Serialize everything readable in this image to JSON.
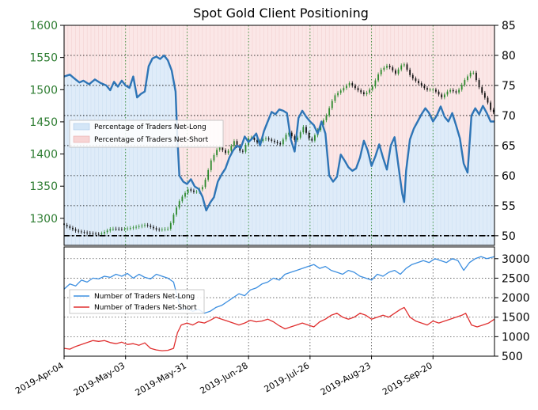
{
  "chart_data": [
    {
      "type": "candlestick+area",
      "title": "Spot Gold Client Positioning",
      "left_axis": {
        "ylim": [
          1258,
          1600
        ],
        "ticks": [
          1300,
          1350,
          1400,
          1450,
          1500,
          1550,
          1600
        ]
      },
      "right_axis": {
        "ylim": [
          48.4,
          85
        ],
        "ticks": [
          50,
          55,
          60,
          65,
          70,
          75,
          80,
          85
        ]
      },
      "x_dates": [
        "2019-Apr-04",
        "2019-May-03",
        "2019-May-31",
        "2019-Jun-28",
        "2019-Jul-26",
        "2019-Aug-23",
        "2019-Sep-20"
      ],
      "reference_line_value": 50,
      "legend": {
        "position": "upper-left",
        "entries": [
          "Percentage of Traders Net-Long",
          "Percentage of Traders Net-Short"
        ]
      },
      "colors": {
        "net_long_fill": "#d4e6f7",
        "net_short_fill": "#f7d4d4",
        "line": "#2e75b6",
        "candle_up": "#2e8b2e",
        "candle_down": "#111111",
        "grid": "#2e8b2e"
      },
      "series": [
        {
          "name": "Percentage of Traders Net-Long",
          "axis": "right",
          "points": [
            [
              0,
              76.5
            ],
            [
              3,
              76.8
            ],
            [
              6,
              76.0
            ],
            [
              8,
              75.5
            ],
            [
              10,
              75.8
            ],
            [
              13,
              75.2
            ],
            [
              16,
              76.0
            ],
            [
              19,
              75.4
            ],
            [
              22,
              75.0
            ],
            [
              24,
              74.2
            ],
            [
              26,
              75.6
            ],
            [
              28,
              74.8
            ],
            [
              30,
              75.8
            ],
            [
              32,
              75.0
            ],
            [
              34,
              74.6
            ],
            [
              36,
              76.5
            ],
            [
              38,
              73.0
            ],
            [
              40,
              73.6
            ],
            [
              42,
              74.0
            ],
            [
              44,
              78.2
            ],
            [
              46,
              79.5
            ],
            [
              48,
              79.8
            ],
            [
              50,
              79.4
            ],
            [
              52,
              80.0
            ],
            [
              54,
              79.2
            ],
            [
              56,
              77.5
            ],
            [
              58,
              74.0
            ],
            [
              59,
              66.0
            ],
            [
              60,
              60.0
            ],
            [
              62,
              59.0
            ],
            [
              64,
              58.6
            ],
            [
              66,
              59.4
            ],
            [
              68,
              58.2
            ],
            [
              70,
              57.8
            ],
            [
              72,
              56.5
            ],
            [
              74,
              54.2
            ],
            [
              76,
              55.5
            ],
            [
              78,
              56.4
            ],
            [
              80,
              59.0
            ],
            [
              82,
              60.2
            ],
            [
              84,
              61.2
            ],
            [
              86,
              63.0
            ],
            [
              88,
              64.2
            ],
            [
              90,
              65.0
            ],
            [
              92,
              64.6
            ],
            [
              94,
              66.5
            ],
            [
              96,
              65.6
            ],
            [
              98,
              66.2
            ],
            [
              100,
              67.0
            ],
            [
              102,
              65.0
            ],
            [
              104,
              67.4
            ],
            [
              106,
              69.0
            ],
            [
              108,
              70.6
            ],
            [
              110,
              70.2
            ],
            [
              112,
              71.0
            ],
            [
              114,
              70.8
            ],
            [
              116,
              70.4
            ],
            [
              118,
              66.0
            ],
            [
              120,
              64.0
            ],
            [
              122,
              69.6
            ],
            [
              124,
              70.8
            ],
            [
              126,
              69.8
            ],
            [
              128,
              69.0
            ],
            [
              130,
              68.4
            ],
            [
              132,
              67.0
            ],
            [
              134,
              69.0
            ],
            [
              136,
              67.0
            ],
            [
              138,
              60.0
            ],
            [
              140,
              59.0
            ],
            [
              142,
              59.8
            ],
            [
              144,
              63.5
            ],
            [
              146,
              62.5
            ],
            [
              148,
              61.4
            ],
            [
              150,
              60.8
            ],
            [
              152,
              61.2
            ],
            [
              154,
              63.0
            ],
            [
              156,
              65.8
            ],
            [
              158,
              64.2
            ],
            [
              160,
              61.6
            ],
            [
              162,
              63.2
            ],
            [
              164,
              65.2
            ],
            [
              166,
              63.0
            ],
            [
              168,
              61.0
            ],
            [
              170,
              65.0
            ],
            [
              172,
              66.4
            ],
            [
              174,
              61.6
            ],
            [
              176,
              57.0
            ],
            [
              177,
              55.6
            ],
            [
              178,
              60.8
            ],
            [
              180,
              66.0
            ],
            [
              182,
              67.8
            ],
            [
              184,
              69.0
            ],
            [
              186,
              70.2
            ],
            [
              188,
              71.2
            ],
            [
              190,
              70.4
            ],
            [
              192,
              69.0
            ],
            [
              194,
              70.0
            ],
            [
              196,
              71.5
            ],
            [
              198,
              69.8
            ],
            [
              200,
              69.0
            ],
            [
              202,
              70.4
            ],
            [
              204,
              68.4
            ],
            [
              206,
              66.2
            ],
            [
              208,
              62.0
            ],
            [
              210,
              60.5
            ],
            [
              212,
              70.0
            ],
            [
              214,
              71.2
            ],
            [
              216,
              70.2
            ],
            [
              218,
              71.6
            ],
            [
              220,
              70.4
            ],
            [
              222,
              69.0
            ],
            [
              224,
              69.0
            ]
          ]
        }
      ]
    },
    {
      "type": "line",
      "right_axis": {
        "ylim": [
          500,
          3300
        ],
        "ticks": [
          500,
          1000,
          1500,
          2000,
          2500,
          3000
        ]
      },
      "legend": {
        "position": "center-left",
        "entries": [
          "Number of Traders Net-Long",
          "Number of Traders Net-Short"
        ]
      },
      "series": [
        {
          "name": "Number of Traders Net-Long",
          "color": "#3d8fe0",
          "points": [
            [
              0,
              2220
            ],
            [
              3,
              2350
            ],
            [
              6,
              2300
            ],
            [
              9,
              2450
            ],
            [
              12,
              2400
            ],
            [
              15,
              2500
            ],
            [
              18,
              2480
            ],
            [
              21,
              2550
            ],
            [
              24,
              2520
            ],
            [
              27,
              2600
            ],
            [
              30,
              2550
            ],
            [
              33,
              2620
            ],
            [
              36,
              2500
            ],
            [
              39,
              2600
            ],
            [
              42,
              2520
            ],
            [
              45,
              2480
            ],
            [
              48,
              2600
            ],
            [
              51,
              2550
            ],
            [
              54,
              2500
            ],
            [
              57,
              2400
            ],
            [
              59,
              2000
            ],
            [
              61,
              1700
            ],
            [
              64,
              1720
            ],
            [
              67,
              1650
            ],
            [
              70,
              1700
            ],
            [
              73,
              1600
            ],
            [
              76,
              1650
            ],
            [
              79,
              1750
            ],
            [
              82,
              1800
            ],
            [
              85,
              1900
            ],
            [
              88,
              2000
            ],
            [
              91,
              2100
            ],
            [
              94,
              2050
            ],
            [
              97,
              2200
            ],
            [
              100,
              2250
            ],
            [
              103,
              2350
            ],
            [
              106,
              2400
            ],
            [
              109,
              2500
            ],
            [
              112,
              2450
            ],
            [
              115,
              2600
            ],
            [
              118,
              2650
            ],
            [
              121,
              2700
            ],
            [
              124,
              2750
            ],
            [
              127,
              2800
            ],
            [
              130,
              2850
            ],
            [
              133,
              2750
            ],
            [
              136,
              2800
            ],
            [
              139,
              2700
            ],
            [
              142,
              2650
            ],
            [
              145,
              2600
            ],
            [
              148,
              2700
            ],
            [
              151,
              2650
            ],
            [
              154,
              2550
            ],
            [
              157,
              2500
            ],
            [
              160,
              2450
            ],
            [
              163,
              2600
            ],
            [
              166,
              2550
            ],
            [
              169,
              2650
            ],
            [
              172,
              2700
            ],
            [
              175,
              2600
            ],
            [
              178,
              2750
            ],
            [
              181,
              2850
            ],
            [
              184,
              2900
            ],
            [
              187,
              2950
            ],
            [
              190,
              2900
            ],
            [
              193,
              3000
            ],
            [
              196,
              2950
            ],
            [
              199,
              2900
            ],
            [
              202,
              3000
            ],
            [
              205,
              2950
            ],
            [
              208,
              2700
            ],
            [
              211,
              2900
            ],
            [
              214,
              3000
            ],
            [
              217,
              3050
            ],
            [
              220,
              3000
            ],
            [
              224,
              3050
            ]
          ]
        },
        {
          "name": "Number of Traders Net-Short",
          "color": "#e03030",
          "points": [
            [
              0,
              700
            ],
            [
              3,
              680
            ],
            [
              6,
              750
            ],
            [
              9,
              800
            ],
            [
              12,
              850
            ],
            [
              15,
              900
            ],
            [
              18,
              880
            ],
            [
              21,
              900
            ],
            [
              24,
              850
            ],
            [
              27,
              820
            ],
            [
              30,
              860
            ],
            [
              33,
              800
            ],
            [
              36,
              820
            ],
            [
              39,
              780
            ],
            [
              42,
              840
            ],
            [
              45,
              700
            ],
            [
              48,
              660
            ],
            [
              51,
              640
            ],
            [
              54,
              650
            ],
            [
              57,
              700
            ],
            [
              59,
              1100
            ],
            [
              61,
              1300
            ],
            [
              64,
              1350
            ],
            [
              67,
              1300
            ],
            [
              70,
              1380
            ],
            [
              73,
              1350
            ],
            [
              76,
              1420
            ],
            [
              79,
              1500
            ],
            [
              82,
              1450
            ],
            [
              85,
              1400
            ],
            [
              88,
              1350
            ],
            [
              91,
              1300
            ],
            [
              94,
              1350
            ],
            [
              97,
              1420
            ],
            [
              100,
              1380
            ],
            [
              103,
              1400
            ],
            [
              106,
              1450
            ],
            [
              109,
              1380
            ],
            [
              112,
              1280
            ],
            [
              115,
              1200
            ],
            [
              118,
              1250
            ],
            [
              121,
              1300
            ],
            [
              124,
              1350
            ],
            [
              127,
              1300
            ],
            [
              130,
              1250
            ],
            [
              133,
              1380
            ],
            [
              136,
              1450
            ],
            [
              139,
              1550
            ],
            [
              142,
              1600
            ],
            [
              145,
              1500
            ],
            [
              148,
              1450
            ],
            [
              151,
              1500
            ],
            [
              154,
              1600
            ],
            [
              157,
              1550
            ],
            [
              160,
              1450
            ],
            [
              163,
              1500
            ],
            [
              166,
              1550
            ],
            [
              169,
              1500
            ],
            [
              172,
              1600
            ],
            [
              175,
              1700
            ],
            [
              177,
              1750
            ],
            [
              180,
              1500
            ],
            [
              183,
              1400
            ],
            [
              186,
              1350
            ],
            [
              189,
              1300
            ],
            [
              192,
              1400
            ],
            [
              195,
              1350
            ],
            [
              198,
              1400
            ],
            [
              201,
              1450
            ],
            [
              204,
              1500
            ],
            [
              207,
              1550
            ],
            [
              209,
              1600
            ],
            [
              212,
              1300
            ],
            [
              215,
              1250
            ],
            [
              218,
              1300
            ],
            [
              221,
              1350
            ],
            [
              224,
              1450
            ]
          ]
        }
      ]
    }
  ]
}
